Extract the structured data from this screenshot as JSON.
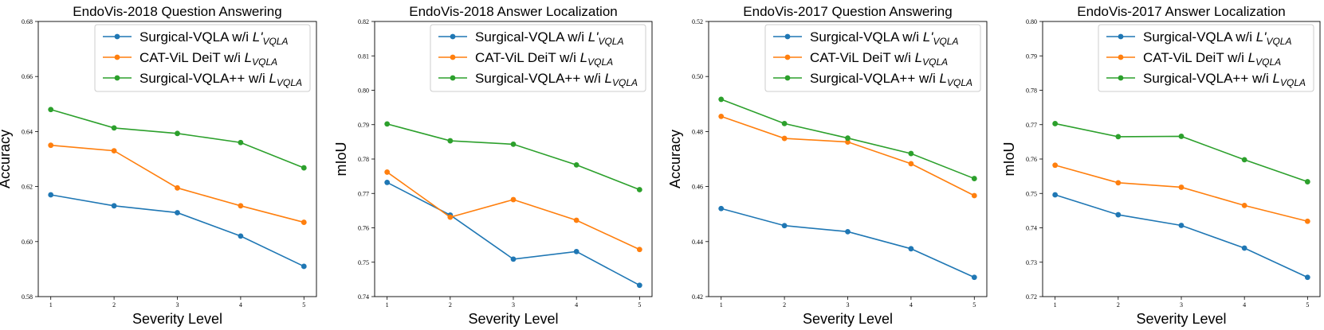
{
  "colors": {
    "Surgical-VQLA": "#1f77b4",
    "CAT-ViL DeiT": "#ff7f0e",
    "Surgical-VQLA++": "#2ca02c"
  },
  "legend": [
    {
      "key": "Surgical-VQLA",
      "prefix": "Surgical-VQLA w/i ",
      "sym": "L'",
      "sub": "VQLA"
    },
    {
      "key": "CAT-ViL DeiT",
      "prefix": "CAT-ViL DeiT w/i ",
      "sym": "L",
      "sub": "VQLA"
    },
    {
      "key": "Surgical-VQLA++",
      "prefix": "Surgical-VQLA++ w/i ",
      "sym": "L",
      "sub": "VQLA"
    }
  ],
  "chart_data": [
    {
      "type": "line",
      "title": "EndoVis-2018 Question Answering",
      "xlabel": "Severity Level",
      "ylabel": "Accuracy",
      "x": [
        1,
        2,
        3,
        4,
        5
      ],
      "xticks": [
        "1",
        "2",
        "3",
        "4",
        "5"
      ],
      "ylim": [
        0.58,
        0.68
      ],
      "yticks": [
        "0.58",
        "0.60",
        "0.62",
        "0.64",
        "0.66",
        "0.68"
      ],
      "legend_position": "top-right",
      "series": [
        {
          "name": "Surgical-VQLA",
          "values": [
            0.617,
            0.613,
            0.6105,
            0.602,
            0.591
          ]
        },
        {
          "name": "CAT-ViL DeiT",
          "values": [
            0.635,
            0.633,
            0.6195,
            0.613,
            0.607
          ]
        },
        {
          "name": "Surgical-VQLA++",
          "values": [
            0.648,
            0.6413,
            0.6393,
            0.636,
            0.6268
          ]
        }
      ]
    },
    {
      "type": "line",
      "title": "EndoVis-2018 Answer Localization",
      "xlabel": "Severity Level",
      "ylabel": "mIoU",
      "x": [
        1,
        2,
        3,
        4,
        5
      ],
      "xticks": [
        "1",
        "2",
        "3",
        "4",
        "5"
      ],
      "ylim": [
        0.74,
        0.82
      ],
      "yticks": [
        "0.74",
        "0.75",
        "0.76",
        "0.77",
        "0.78",
        "0.79",
        "0.80",
        "0.81",
        "0.82"
      ],
      "legend_position": "top-right",
      "series": [
        {
          "name": "Surgical-VQLA",
          "values": [
            0.7732,
            0.7637,
            0.7509,
            0.7531,
            0.7433
          ]
        },
        {
          "name": "CAT-ViL DeiT",
          "values": [
            0.7762,
            0.7631,
            0.7682,
            0.7622,
            0.7537
          ]
        },
        {
          "name": "Surgical-VQLA++",
          "values": [
            0.7902,
            0.7853,
            0.7843,
            0.7783,
            0.7711
          ]
        }
      ]
    },
    {
      "type": "line",
      "title": "EndoVis-2017 Question Answering",
      "xlabel": "Severity Level",
      "ylabel": "Accuracy",
      "x": [
        1,
        2,
        3,
        4,
        5
      ],
      "xticks": [
        "1",
        "2",
        "3",
        "4",
        "5"
      ],
      "ylim": [
        0.42,
        0.52
      ],
      "yticks": [
        "0.42",
        "0.44",
        "0.46",
        "0.48",
        "0.50",
        "0.52"
      ],
      "legend_position": "top-right",
      "series": [
        {
          "name": "Surgical-VQLA",
          "values": [
            0.452,
            0.4458,
            0.4436,
            0.4374,
            0.427
          ]
        },
        {
          "name": "CAT-ViL DeiT",
          "values": [
            0.4855,
            0.4775,
            0.4762,
            0.4683,
            0.4567
          ]
        },
        {
          "name": "Surgical-VQLA++",
          "values": [
            0.4917,
            0.4829,
            0.4776,
            0.472,
            0.4629
          ]
        }
      ]
    },
    {
      "type": "line",
      "title": "EndoVis-2017 Answer Localization",
      "xlabel": "Severity Level",
      "ylabel": "mIoU",
      "x": [
        1,
        2,
        3,
        4,
        5
      ],
      "xticks": [
        "1",
        "2",
        "3",
        "4",
        "5"
      ],
      "ylim": [
        0.72,
        0.8
      ],
      "yticks": [
        "0.72",
        "0.73",
        "0.74",
        "0.75",
        "0.76",
        "0.77",
        "0.78",
        "0.79",
        "0.80"
      ],
      "legend_position": "top-right",
      "series": [
        {
          "name": "Surgical-VQLA",
          "values": [
            0.7496,
            0.7438,
            0.7407,
            0.7341,
            0.7256
          ]
        },
        {
          "name": "CAT-ViL DeiT",
          "values": [
            0.7582,
            0.7531,
            0.7518,
            0.7465,
            0.7419
          ]
        },
        {
          "name": "Surgical-VQLA++",
          "values": [
            0.7703,
            0.7665,
            0.7666,
            0.7598,
            0.7534
          ]
        }
      ]
    }
  ]
}
